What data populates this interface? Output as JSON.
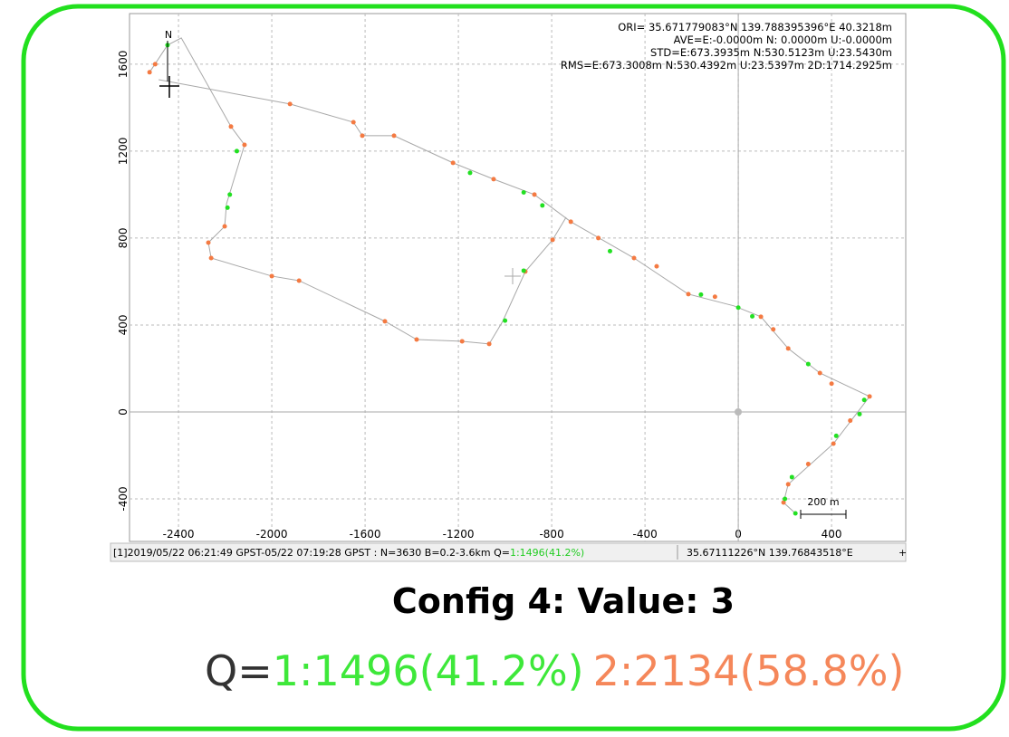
{
  "chart_data": {
    "type": "scatter",
    "xlim": [
      -2610,
      718
    ],
    "ylim": [
      -596,
      1833
    ],
    "xticks": [
      -2400,
      -2000,
      -1600,
      -1200,
      -800,
      -400,
      0,
      400
    ],
    "yticks": [
      -400,
      0,
      400,
      800,
      1200,
      1600
    ],
    "grid": true,
    "stats": [
      "ORI= 35.671779083°N  139.788395396°E 40.3218m",
      "AVE=E:-0.0000m N: 0.0000m U:-0.0000m",
      "STD=E:673.3935m N:530.5123m U:23.5430m",
      "RMS=E:673.3008m N:530.4392m U:23.5397m 2D:1714.2925m"
    ],
    "north_label": "N",
    "scale_label": "200 m",
    "status_text": "[1]2019/05/22 06:21:49 GPST-05/22 07:19:28 GPST : N=3630 B=0.2-3.6km Q=",
    "status_q": "1:1496(41.2%)",
    "status_position": "35.67111226°N  139.76843518°E",
    "status_plus": "+",
    "series": [
      {
        "color": "#a8a8a8",
        "line": true,
        "x": [
          -2524,
          -2447,
          -2388,
          -2175,
          -2117,
          -2194,
          -2202,
          -2272,
          -2260,
          -2000,
          -1883,
          -1515,
          -1379,
          -1184,
          -1068,
          -1010,
          -913,
          -796,
          -738,
          null,
          -2485,
          -1922,
          -1650,
          -1612,
          -1476,
          -1223,
          -1049,
          -874,
          -718,
          -447,
          -214,
          -19,
          97,
          214,
          350,
          563,
          408,
          214,
          194,
          245
        ],
        "y": [
          1563,
          1688,
          1721,
          1313,
          1229,
          958,
          854,
          779,
          708,
          625,
          604,
          417,
          333,
          325,
          313,
          417,
          646,
          792,
          896,
          null,
          1529,
          1417,
          1333,
          1271,
          1271,
          1146,
          1071,
          1000,
          875,
          708,
          542,
          488,
          438,
          292,
          179,
          71,
          -146,
          -333,
          -417,
          -467
        ]
      },
      {
        "color": "#f47a42",
        "x": [
          -2524,
          -2500,
          -2175,
          -2117,
          -2202,
          -2272,
          -2260,
          -2000,
          -1883,
          -1515,
          -1379,
          -1184,
          -1068,
          -913,
          -796,
          -1922,
          -1650,
          -1612,
          -1476,
          -1223,
          -1049,
          -874,
          -718,
          -600,
          -447,
          -350,
          -214,
          -100,
          97,
          150,
          214,
          350,
          400,
          563,
          480,
          408,
          300,
          214,
          194
        ],
        "y": [
          1563,
          1600,
          1313,
          1229,
          854,
          779,
          708,
          625,
          604,
          417,
          333,
          325,
          313,
          646,
          792,
          1417,
          1333,
          1271,
          1271,
          1146,
          1071,
          1000,
          875,
          800,
          708,
          670,
          542,
          530,
          438,
          380,
          292,
          179,
          130,
          71,
          -40,
          -146,
          -240,
          -333,
          -417
        ]
      },
      {
        "color": "#22e022",
        "x": [
          -2447,
          -2180,
          -2190,
          -2150,
          -1150,
          -920,
          -840,
          -550,
          -160,
          0,
          60,
          300,
          540,
          520,
          420,
          230,
          200,
          245,
          -1000,
          -920
        ],
        "y": [
          1688,
          1000,
          940,
          1200,
          1100,
          1010,
          950,
          740,
          540,
          480,
          440,
          220,
          55,
          -10,
          -110,
          -300,
          -400,
          -467,
          420,
          650
        ]
      }
    ]
  },
  "caption": "Config 4: Value: 3",
  "q_prefix": "Q=",
  "q1": "1:1496(41.2%)",
  "q2": "2:2134(58.8%)"
}
